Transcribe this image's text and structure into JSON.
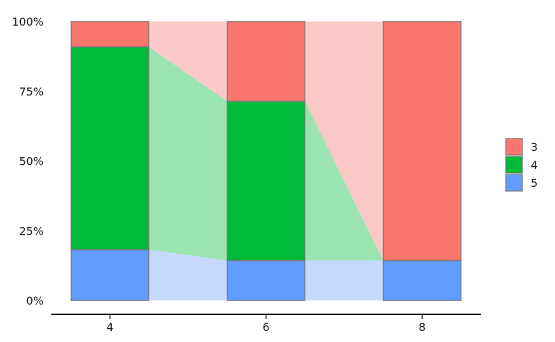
{
  "chart_data": {
    "type": "bar",
    "stacked": true,
    "percent": true,
    "alluvial_ribbons": true,
    "categories": [
      "4",
      "6",
      "8"
    ],
    "series": [
      {
        "name": "5",
        "values": [
          0.182,
          0.143,
          0.143
        ],
        "color": "#619CFF",
        "ribbon_color": "#C5D9FF"
      },
      {
        "name": "4",
        "values": [
          0.727,
          0.571,
          0.0
        ],
        "color": "#00BA38",
        "ribbon_color": "#9BE3AF"
      },
      {
        "name": "3",
        "values": [
          0.091,
          0.286,
          0.857
        ],
        "color": "#F8766D",
        "ribbon_color": "#FBC9C5"
      }
    ],
    "y_ticks": [
      "0%",
      "25%",
      "50%",
      "75%",
      "100%"
    ],
    "ylim": [
      0,
      1
    ],
    "legend": {
      "entries": [
        "3",
        "4",
        "5"
      ],
      "placement": "right"
    },
    "grid": false,
    "title": "",
    "xlabel": "",
    "ylabel": ""
  }
}
